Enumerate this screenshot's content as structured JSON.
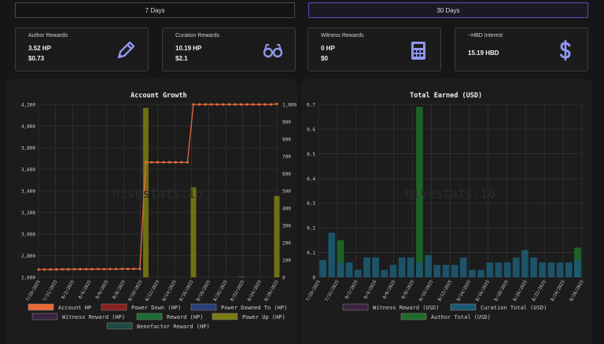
{
  "tabs": [
    {
      "label": "7 Days",
      "active": false
    },
    {
      "label": "30 Days",
      "active": true
    }
  ],
  "cards": [
    {
      "title": "Author Rewards",
      "v1": "3.52 HP",
      "v2": "$0.73",
      "icon": "pencil-icon"
    },
    {
      "title": "Curation Rewards",
      "v1": "10.19 HP",
      "v2": "$2.1",
      "icon": "glasses-icon"
    },
    {
      "title": "Witness Rewards",
      "v1": "0 HP",
      "v2": "$0",
      "icon": "calculator-icon"
    },
    {
      "title": "~HBD Interest",
      "v1": "15.19 HBD",
      "v2": "",
      "icon": "dollar-icon"
    }
  ],
  "colors": {
    "accent": "#7b86e8",
    "account_hp": "#e8693a",
    "power_down": "#8b1e1e",
    "power_downed_to": "#2a3f7a",
    "witness_reward": "#3b2440",
    "reward": "#1e6a34",
    "power_up": "#7a7a12",
    "benefactor": "#1f4a44",
    "curation_total": "#1d5a72",
    "author_total": "#1e6a28"
  },
  "watermark": "hivestats.io",
  "chart_data": [
    {
      "type": "line",
      "title": "Account Growth",
      "x_ticks": [
        "7/29/2025",
        "7/31/2025",
        "8/2/2025",
        "8/4/2025",
        "8/6/2025",
        "8/8/2025",
        "8/10/2025",
        "8/12/2025",
        "8/14/2025",
        "8/16/2025",
        "8/18/2025",
        "8/20/2025",
        "8/22/2025",
        "8/24/2025",
        "8/26/2025"
      ],
      "y_left_ticks": [
        "2,600",
        "2,800",
        "3,000",
        "3,200",
        "3,400",
        "3,600",
        "3,800",
        "4,000",
        "4,200"
      ],
      "y_right_ticks": [
        "0",
        "100",
        "200",
        "300",
        "400",
        "500",
        "600",
        "700",
        "800",
        "900",
        "1,000"
      ],
      "ylim_left": [
        2600,
        4200
      ],
      "ylim_right": [
        0,
        1000
      ],
      "series": [
        {
          "name": "Account HP",
          "axis": "left",
          "values": [
            2672,
            2672,
            2672,
            2673,
            2674,
            2674,
            2675,
            2675,
            2675,
            2675,
            2676,
            2676,
            2676,
            2676,
            2677,
            2677,
            2677,
            2677,
            3665,
            3665,
            3665,
            3665,
            3665,
            3665,
            3665,
            3665,
            4200,
            4200,
            4200,
            4200,
            4200,
            4200,
            4200,
            4200,
            4200,
            4200,
            4200,
            4200,
            4200,
            4200,
            4205
          ]
        },
        {
          "name": "Power Up (HP)",
          "axis": "right",
          "bars": [
            {
              "index": 18,
              "value": 980
            },
            {
              "index": 26,
              "value": 520
            },
            {
              "index": 34,
              "value": 3
            },
            {
              "index": 40,
              "value": 470
            }
          ]
        }
      ],
      "legend": [
        {
          "label": "Account HP",
          "color": "#e8693a"
        },
        {
          "label": "Power Down (HP)",
          "color": "#8b1e1e"
        },
        {
          "label": "Power Downed To (HP)",
          "color": "#2a3f7a"
        },
        {
          "label": "Witness Reward (HP)",
          "color": "#3b2440"
        },
        {
          "label": "Reward (HP)",
          "color": "#1e6a34"
        },
        {
          "label": "Power Up (HP)",
          "color": "#7a7a12"
        },
        {
          "label": "Benefactor Reward (HP)",
          "color": "#1f4a44"
        }
      ],
      "grid": true
    },
    {
      "type": "bar",
      "title": "Total Earned (USD)",
      "x_ticks": [
        "7/29/2025",
        "7/31/2025",
        "8/2/2025",
        "8/4/2025",
        "8/6/2025",
        "8/8/2025",
        "8/10/2025",
        "8/12/2025",
        "8/14/2025",
        "8/16/2025",
        "8/18/2025",
        "8/20/2025",
        "8/22/2025",
        "8/24/2025",
        "8/26/2025"
      ],
      "y_ticks": [
        "0",
        "0.1",
        "0.2",
        "0.3",
        "0.4",
        "0.5",
        "0.6",
        "0.7"
      ],
      "ylim": [
        0,
        0.7
      ],
      "series": [
        {
          "name": "Curation Total (USD)",
          "values": [
            0.07,
            0.18,
            0.06,
            0.06,
            0.03,
            0.08,
            0.08,
            0.03,
            0.05,
            0.08,
            0.08,
            0.06,
            0.09,
            0.05,
            0.05,
            0.05,
            0.08,
            0.03,
            0.03,
            0.06,
            0.06,
            0.06,
            0.08,
            0.11,
            0.08,
            0.06,
            0.06,
            0.06,
            0.06,
            0.07
          ]
        },
        {
          "name": "Author Total (USD)",
          "values": [
            0,
            0,
            0.15,
            0,
            0,
            0,
            0,
            0,
            0,
            0,
            0,
            0.69,
            0,
            0,
            0,
            0,
            0,
            0,
            0,
            0,
            0,
            0,
            0,
            0,
            0,
            0,
            0,
            0,
            0,
            0.12
          ]
        }
      ],
      "legend": [
        {
          "label": "Witness Reward (USD)",
          "color": "#3b2440"
        },
        {
          "label": "Curation Total (USD)",
          "color": "#1d5a72"
        },
        {
          "label": "Author Total (USD)",
          "color": "#1e6a28"
        }
      ],
      "grid": true
    }
  ]
}
